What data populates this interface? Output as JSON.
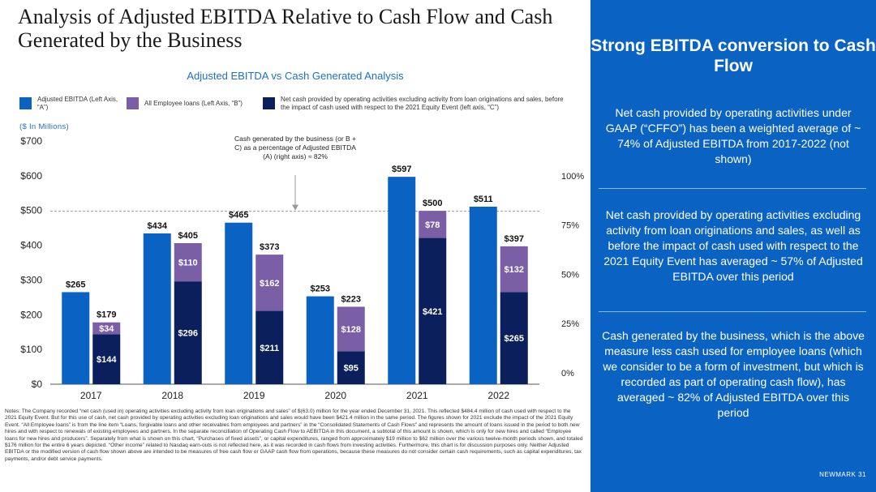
{
  "slide": {
    "title": "Analysis of Adjusted EBITDA Relative to Cash Flow and Cash Generated by the Business",
    "units": "($ In Millions)",
    "legend": [
      {
        "label": "Adjusted EBITDA (Left Axis, “A”)",
        "color": "#0a63c3"
      },
      {
        "label": "All Employee loans (Left Axis, “B”)",
        "color": "#7a5ea6"
      },
      {
        "label": "Net cash provided by operating activities excluding activity from loan originations and sales, before the impact of cash used with respect to the 2021 Equity Event (left axis, “C”)",
        "color": "#0b1f5c"
      }
    ],
    "notes": "Notes: The Company recorded “net cash (used in) operating activities excluding activity from loan originations and sales” of $(63.0) million for the year ended December 31, 2021. This reflected $484.4 million of cash used with respect to the 2021 Equity Event. But for this use of cash, net cash provided by operating activities excluding loan originations and sales would have been $421.4 million in the same period. The figures shown for 2021 exclude the impact of the 2021 Equity Event. “All Employee loans” is from the line item “Loans, forgivable loans and other receivables from employees and partners” in the “Consolidated Statements of Cash Flows” and represents the amount of loans issued in the period to both new hires and with respect to renewals of existing employees and partners. In the separate reconciliation of Operating Cash Flow to AEBITDA in this document, a subtotal of this amount is shown, which is only for new hires and called “Employee loans for new hires and producers”. Separately from what is shown on this chart, “Purchases of fixed assets”, or capital expenditures, ranged from approximately $19 million to $62 million over the various twelve-month periods shown, and totaled $176 million for the entire 6 years depicted. “Other income” related to Nasdaq earn-outs is not reflected here, as it was recorded in cash flows from investing activities. Furthermore, this chart is for discussion purposes only. Neither Adjusted EBITDA or the modified version of cash flow shown above are intended to be measures of free cash flow or GAAP cash flow from operations, because these measures do not consider certain cash requirements, such as capital expenditures, tax payments, and/or debt service payments."
  },
  "panel": {
    "title": "Strong EBITDA conversion to Cash Flow",
    "points": [
      "Net cash provided by operating activities under GAAP (“CFFO”) has been a weighted average of ~ 74% of Adjusted EBITDA from 2017-2022 (not shown)",
      "Net cash provided by operating activities excluding activity from loan originations and sales, as well as before the impact of cash used with respect to the 2021 Equity Event has averaged ~ 57% of Adjusted EBITDA over this period",
      "Cash generated by the business, which is the above measure less cash used for employee loans (which we consider to be a form of investment, but which is recorded as part of operating cash flow), has averaged ~ 82% of Adjusted EBITDA over this period"
    ],
    "footer": "NEWMARK 31"
  },
  "chart_data": {
    "type": "bar",
    "title": "Adjusted EBITDA vs Cash Generated Analysis",
    "categories": [
      "2017",
      "2018",
      "2019",
      "2020",
      "2021",
      "2022"
    ],
    "ylim": [
      0,
      700
    ],
    "yticks": [
      "$0",
      "$100",
      "$200",
      "$300",
      "$400",
      "$500",
      "$600",
      "$700"
    ],
    "right_axis_ticks": [
      "0%",
      "25%",
      "50%",
      "75%",
      "100%"
    ],
    "series": [
      {
        "name": "Adjusted EBITDA (Left Axis, “A”)",
        "color": "#0a63c3",
        "values": [
          265,
          434,
          465,
          253,
          597,
          511
        ],
        "labels": [
          "$265",
          "$434",
          "$465",
          "$253",
          "$597",
          "$511"
        ]
      },
      {
        "name": "All Employee loans (Left Axis, “B”)",
        "color": "#7a5ea6",
        "values": [
          34,
          110,
          162,
          128,
          78,
          132
        ],
        "labels": [
          "$34",
          "$110",
          "$162",
          "$128",
          "$78",
          "$132"
        ]
      },
      {
        "name": "Net cash provided by operating activities excluding activity from loan originations and sales, before the impact of cash used with respect to the 2021 Equity Event (left axis, “C”)",
        "color": "#0b1f5c",
        "values": [
          144,
          296,
          211,
          95,
          421,
          265
        ],
        "labels": [
          "$144",
          "$296",
          "$211",
          "$95",
          "$421",
          "$265"
        ]
      }
    ],
    "stack_totals": [
      179,
      405,
      373,
      223,
      500,
      397
    ],
    "stack_total_labels": [
      "$179",
      "$405",
      "$373",
      "$223",
      "$500",
      "$397"
    ],
    "reference_line": {
      "value_pct": 82
    },
    "annotation": "Cash generated by the business (or B + C) as a percentage of Adjusted EBITDA (A) (right axis) ≈ 82%"
  }
}
